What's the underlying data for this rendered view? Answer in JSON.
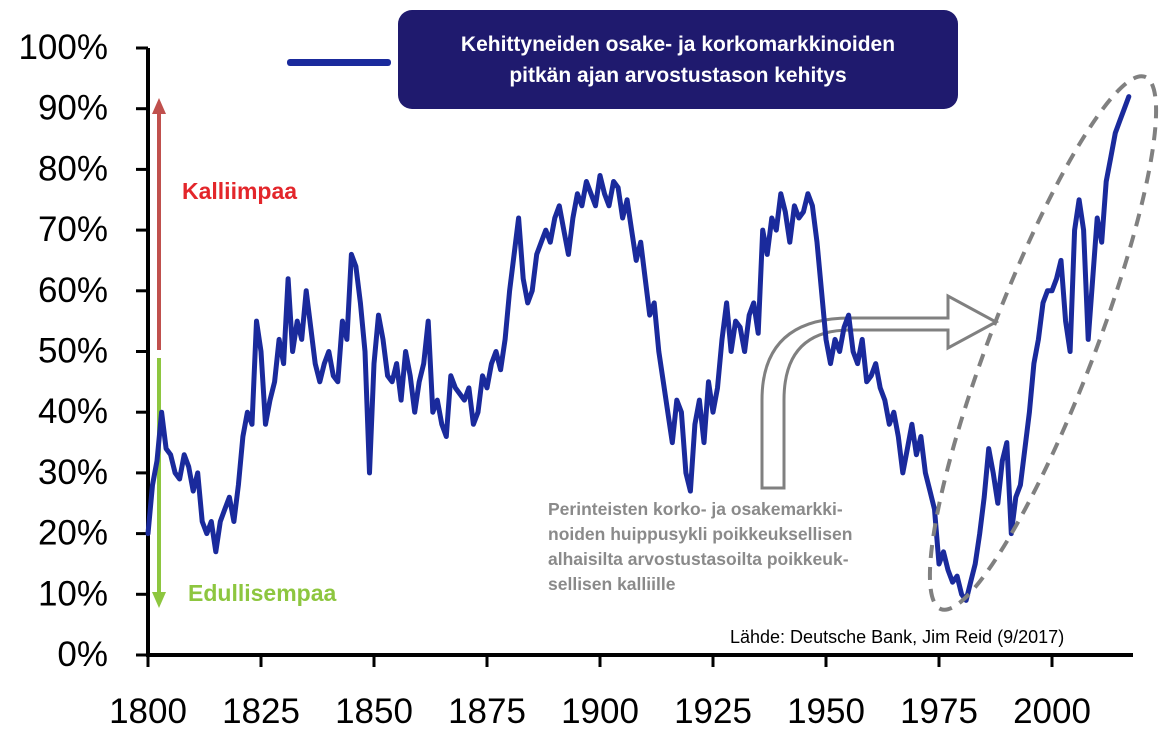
{
  "chart_data": {
    "type": "line",
    "title": "",
    "xlabel": "",
    "ylabel": "",
    "xlim": [
      1800,
      2017
    ],
    "ylim": [
      0,
      100
    ],
    "x_ticks": [
      "1800",
      "1825",
      "1850",
      "1875",
      "1900",
      "1925",
      "1950",
      "1975",
      "2000"
    ],
    "y_ticks": [
      "0%",
      "10%",
      "20%",
      "30%",
      "40%",
      "50%",
      "60%",
      "70%",
      "80%",
      "90%",
      "100%"
    ],
    "grid": false,
    "legend": {
      "position": "top-center",
      "lines": [
        "Kehittyneiden osake- ja korkomarkkinoiden",
        "pitkän ajan arvostustason kehitys"
      ]
    },
    "series": [
      {
        "name": "Kehittyneiden osake- ja korkomarkkinoiden pitkän ajan arvostustason kehitys",
        "color": "#1a2a9c",
        "x": [
          1800,
          1801,
          1802,
          1803,
          1804,
          1805,
          1806,
          1807,
          1808,
          1809,
          1810,
          1811,
          1812,
          1813,
          1814,
          1815,
          1816,
          1817,
          1818,
          1819,
          1820,
          1821,
          1822,
          1823,
          1824,
          1825,
          1826,
          1827,
          1828,
          1829,
          1830,
          1831,
          1832,
          1833,
          1834,
          1835,
          1836,
          1837,
          1838,
          1839,
          1840,
          1841,
          1842,
          1843,
          1844,
          1845,
          1846,
          1847,
          1848,
          1849,
          1850,
          1851,
          1852,
          1853,
          1854,
          1855,
          1856,
          1857,
          1858,
          1859,
          1860,
          1861,
          1862,
          1863,
          1864,
          1865,
          1866,
          1867,
          1868,
          1869,
          1870,
          1871,
          1872,
          1873,
          1874,
          1875,
          1876,
          1877,
          1878,
          1879,
          1880,
          1881,
          1882,
          1883,
          1884,
          1885,
          1886,
          1887,
          1888,
          1889,
          1890,
          1891,
          1892,
          1893,
          1894,
          1895,
          1896,
          1897,
          1898,
          1899,
          1900,
          1901,
          1902,
          1903,
          1904,
          1905,
          1906,
          1907,
          1908,
          1909,
          1910,
          1911,
          1912,
          1913,
          1914,
          1915,
          1916,
          1917,
          1918,
          1919,
          1920,
          1921,
          1922,
          1923,
          1924,
          1925,
          1926,
          1927,
          1928,
          1929,
          1930,
          1931,
          1932,
          1933,
          1934,
          1935,
          1936,
          1937,
          1938,
          1939,
          1940,
          1941,
          1942,
          1943,
          1944,
          1945,
          1946,
          1947,
          1948,
          1949,
          1950,
          1951,
          1952,
          1953,
          1954,
          1955,
          1956,
          1957,
          1958,
          1959,
          1960,
          1961,
          1962,
          1963,
          1964,
          1965,
          1966,
          1967,
          1968,
          1969,
          1970,
          1971,
          1972,
          1973,
          1974,
          1975,
          1976,
          1977,
          1978,
          1979,
          1980,
          1981,
          1982,
          1983,
          1984,
          1985,
          1986,
          1987,
          1988,
          1989,
          1990,
          1991,
          1992,
          1993,
          1994,
          1995,
          1996,
          1997,
          1998,
          1999,
          2000,
          2001,
          2002,
          2003,
          2004,
          2005,
          2006,
          2007,
          2008,
          2009,
          2010,
          2011,
          2012,
          2013,
          2014,
          2015,
          2016,
          2017
        ],
        "values": [
          20,
          28,
          32,
          40,
          34,
          33,
          30,
          29,
          33,
          31,
          27,
          30,
          22,
          20,
          22,
          17,
          22,
          24,
          26,
          22,
          28,
          36,
          40,
          38,
          55,
          50,
          38,
          42,
          45,
          52,
          48,
          62,
          50,
          55,
          52,
          60,
          54,
          48,
          45,
          48,
          50,
          46,
          45,
          55,
          52,
          66,
          64,
          58,
          50,
          30,
          48,
          56,
          52,
          46,
          45,
          48,
          42,
          50,
          46,
          40,
          45,
          48,
          55,
          40,
          42,
          38,
          36,
          46,
          44,
          43,
          42,
          44,
          38,
          40,
          46,
          44,
          48,
          50,
          47,
          52,
          60,
          66,
          72,
          62,
          58,
          60,
          66,
          68,
          70,
          68,
          72,
          74,
          70,
          66,
          72,
          76,
          74,
          78,
          76,
          74,
          79,
          76,
          74,
          78,
          77,
          72,
          75,
          70,
          65,
          68,
          62,
          56,
          58,
          50,
          45,
          40,
          35,
          42,
          40,
          30,
          27,
          38,
          42,
          35,
          45,
          40,
          44,
          52,
          58,
          50,
          55,
          54,
          50,
          56,
          58,
          53,
          70,
          66,
          72,
          70,
          76,
          73,
          68,
          74,
          72,
          73,
          76,
          74,
          68,
          60,
          52,
          48,
          52,
          50,
          54,
          56,
          50,
          48,
          52,
          45,
          46,
          48,
          44,
          42,
          38,
          40,
          36,
          30,
          34,
          38,
          33,
          36,
          30,
          27,
          24,
          15,
          17,
          14,
          12,
          13,
          10,
          9,
          12,
          15,
          20,
          26,
          34,
          30,
          25,
          32,
          35,
          20,
          26,
          28,
          34,
          40,
          48,
          52,
          58,
          60,
          60,
          62,
          65,
          55,
          50,
          70,
          75,
          70,
          52,
          62,
          72,
          68,
          78,
          82,
          86,
          88,
          90,
          92
        ]
      }
    ],
    "annotations": {
      "expensive_label": "Kalliimpaa",
      "cheap_label": "Edullisempaa",
      "cycle_note": [
        "Perinteisten korko- ja osakemarkki-",
        "noiden huippusykli poikkeuksellisen",
        "alhaisilta arvostustasoilta poikkeuk-",
        "sellisen kalliille"
      ],
      "source": "Lähde: Deutsche Bank, Jim Reid (9/2017)",
      "up_arrow_color": "#c0504d",
      "down_arrow_color": "#8dc63f",
      "ellipse_color": "#808080"
    }
  }
}
